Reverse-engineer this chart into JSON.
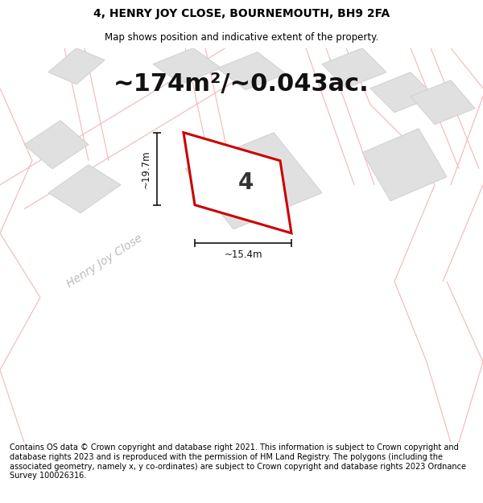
{
  "title": "4, HENRY JOY CLOSE, BOURNEMOUTH, BH9 2FA",
  "subtitle": "Map shows position and indicative extent of the property.",
  "area_text": "~174m²/~0.043ac.",
  "number_label": "4",
  "dim_vertical": "~19.7m",
  "dim_horizontal": "~15.4m",
  "street_label": "Henry Joy Close",
  "footer": "Contains OS data © Crown copyright and database right 2021. This information is subject to Crown copyright and database rights 2023 and is reproduced with the permission of HM Land Registry. The polygons (including the associated geometry, namely x, y co-ordinates) are subject to Crown copyright and database rights 2023 Ordnance Survey 100026316.",
  "bg_color": "#ffffff",
  "map_bg": "#ffffff",
  "road_color": "#f0b8b8",
  "plot_stroke": "#cc0000",
  "building_fill": "#e0e0e0",
  "building_edge": "#d0d0d0",
  "title_fontsize": 10,
  "subtitle_fontsize": 8.5,
  "area_fontsize": 22,
  "footer_fontsize": 7,
  "street_fontsize": 10,
  "dim_fontsize": 8.5,
  "number_fontsize": 20
}
